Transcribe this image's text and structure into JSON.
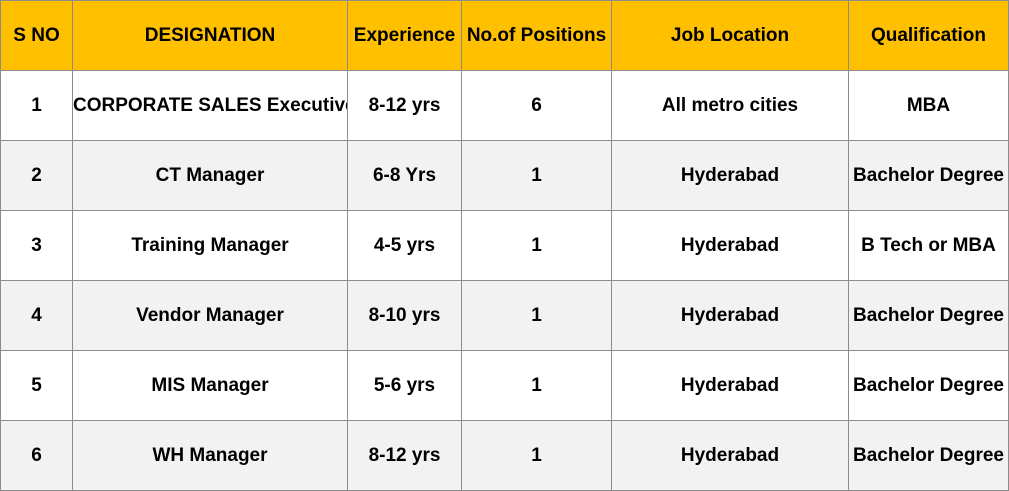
{
  "table": {
    "headers": {
      "sno": "S NO",
      "designation": "DESIGNATION",
      "experience": "Experience",
      "positions": "No.of Positions",
      "location": "Job Location",
      "qualification": "Qualification"
    },
    "rows": [
      {
        "sno": "1",
        "designation": "CORPORATE SALES Executive",
        "experience": "8-12 yrs",
        "positions": "6",
        "location": "All metro cities",
        "qualification": "MBA"
      },
      {
        "sno": "2",
        "designation": "CT Manager",
        "experience": "6-8 Yrs",
        "positions": "1",
        "location": "Hyderabad",
        "qualification": "Bachelor Degree"
      },
      {
        "sno": "3",
        "designation": "Training Manager",
        "experience": "4-5 yrs",
        "positions": "1",
        "location": "Hyderabad",
        "qualification": "B Tech or MBA"
      },
      {
        "sno": "4",
        "designation": "Vendor Manager",
        "experience": "8-10 yrs",
        "positions": "1",
        "location": "Hyderabad",
        "qualification": "Bachelor Degree"
      },
      {
        "sno": "5",
        "designation": "MIS Manager",
        "experience": "5-6 yrs",
        "positions": "1",
        "location": "Hyderabad",
        "qualification": "Bachelor Degree"
      },
      {
        "sno": "6",
        "designation": "WH Manager",
        "experience": "8-12 yrs",
        "positions": "1",
        "location": "Hyderabad",
        "qualification": "Bachelor Degree"
      }
    ]
  },
  "colors": {
    "header_bg": "#ffc000",
    "row_alt_bg": "#f2f2f2",
    "row_bg": "#ffffff",
    "border": "#8c8c8c"
  }
}
